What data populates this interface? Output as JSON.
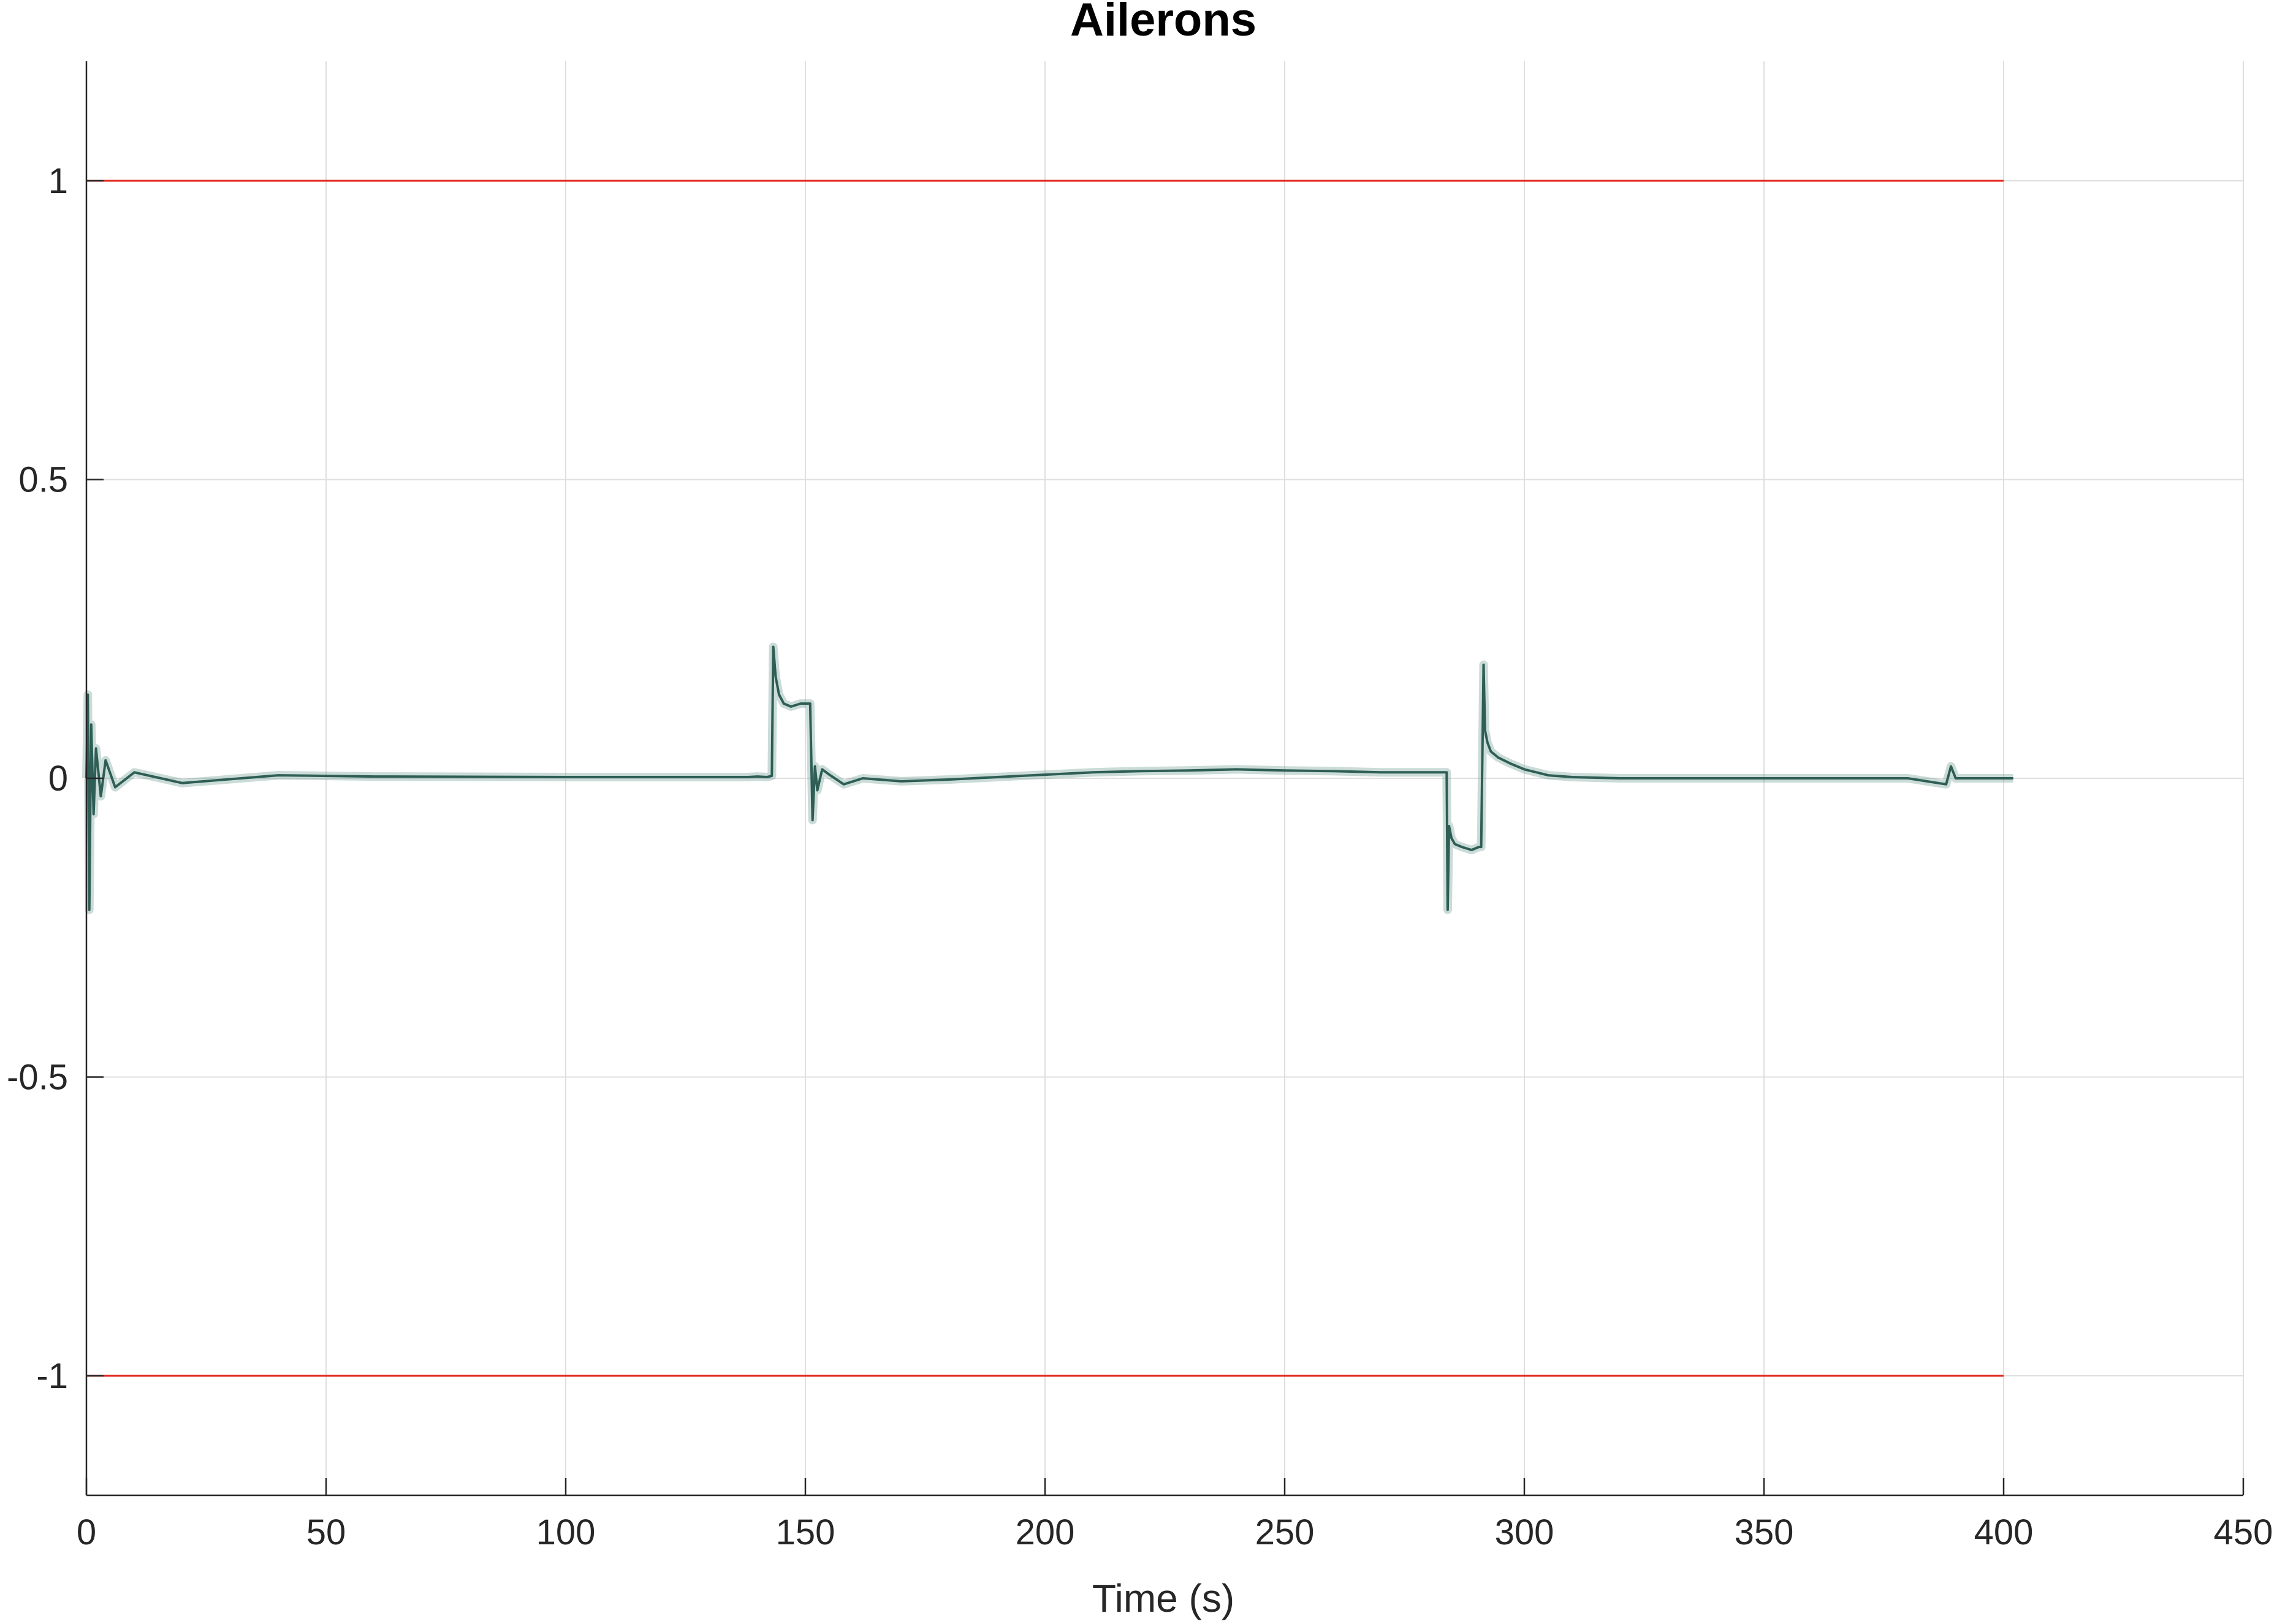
{
  "chart_data": {
    "type": "line",
    "title": "Ailerons",
    "xlabel": "Time (s)",
    "ylabel": "",
    "xlim": [
      0,
      450
    ],
    "ylim": [
      -1.2,
      1.2
    ],
    "xticks": [
      0,
      50,
      100,
      150,
      200,
      250,
      300,
      350,
      400,
      450
    ],
    "xtick_labels": [
      "0",
      "50",
      "100",
      "150",
      "200",
      "250",
      "300",
      "350",
      "400",
      "450"
    ],
    "yticks": [
      1,
      0.5,
      0,
      -0.5,
      -1
    ],
    "ytick_labels": [
      "1",
      "0.5",
      "0",
      "-0.5",
      "-1"
    ],
    "grid": true,
    "legend": "none",
    "limit_color": "#e3261c",
    "signal_color": "#2e5e55",
    "limits": [
      {
        "x": [
          0,
          400
        ],
        "y": [
          1,
          1
        ]
      },
      {
        "x": [
          0,
          400
        ],
        "y": [
          -1,
          -1
        ]
      }
    ],
    "series": [
      {
        "x": [
          0,
          0.3,
          0.6,
          1,
          1.5,
          2,
          3,
          4,
          6,
          10,
          20,
          40,
          60,
          100,
          130,
          138,
          140,
          142,
          143,
          143.3,
          143.8,
          144.5,
          145.5,
          147,
          149,
          150.5,
          151,
          151.5,
          152,
          152.5,
          153.5,
          155,
          158,
          162,
          170,
          180,
          190,
          200,
          210,
          220,
          230,
          240,
          250,
          260,
          270,
          280,
          283.8,
          284,
          284.3,
          284.8,
          285.5,
          287,
          289,
          290.5,
          291,
          291.5,
          291.8,
          292.3,
          293,
          294.5,
          297,
          300,
          305,
          310,
          320,
          340,
          360,
          380,
          388,
          389,
          390,
          395,
          400,
          402
        ],
        "y": [
          0,
          0.14,
          -0.22,
          0.09,
          -0.06,
          0.05,
          -0.03,
          0.03,
          -0.015,
          0.01,
          -0.008,
          0.005,
          0.003,
          0.002,
          0.002,
          0.002,
          0.003,
          0.002,
          0.004,
          0.22,
          0.17,
          0.14,
          0.125,
          0.12,
          0.125,
          0.125,
          0.125,
          -0.07,
          0.02,
          -0.02,
          0.015,
          0.006,
          -0.01,
          0.0,
          -0.005,
          -0.002,
          0.002,
          0.006,
          0.01,
          0.012,
          0.013,
          0.015,
          0.013,
          0.012,
          0.01,
          0.01,
          0.01,
          -0.22,
          -0.08,
          -0.1,
          -0.11,
          -0.115,
          -0.12,
          -0.115,
          -0.115,
          0.19,
          0.08,
          0.06,
          0.045,
          0.035,
          0.025,
          0.015,
          0.005,
          0.002,
          0.0,
          0.0,
          0.0,
          0.0,
          -0.01,
          0.02,
          0.0,
          0.0,
          0.0,
          0.0
        ]
      }
    ]
  }
}
